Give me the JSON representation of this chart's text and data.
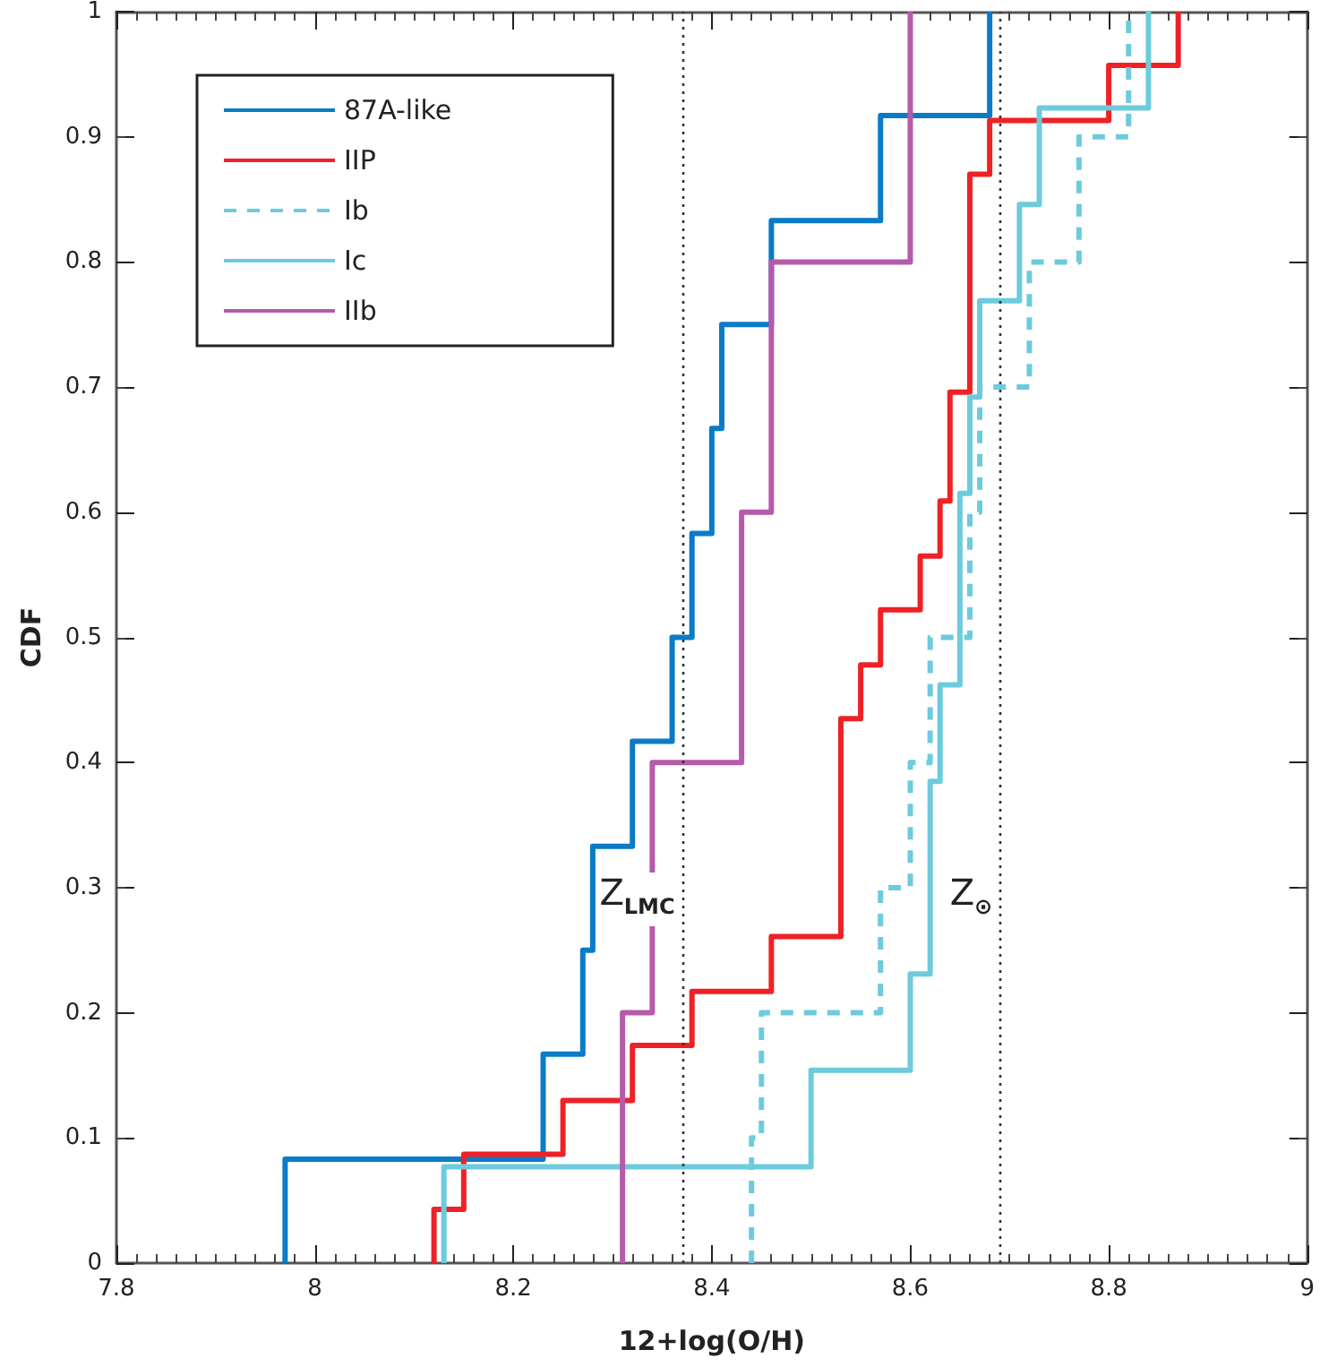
{
  "chart_data": {
    "type": "step",
    "xlabel": "12+log(O/H)",
    "ylabel": "CDF",
    "xlim": [
      7.8,
      9
    ],
    "xticks": [
      7.8,
      8,
      8.2,
      8.4,
      8.6,
      8.8,
      9
    ],
    "ylim": [
      0,
      1
    ],
    "yticks": [
      0,
      0.1,
      0.2,
      0.3,
      0.4,
      0.5,
      0.6,
      0.7,
      0.8,
      0.9,
      1
    ],
    "grid": false,
    "legend": "top left",
    "marker": "none",
    "series": [
      {
        "name": "87A-like",
        "color": "#0a7bc6",
        "line_style": "solid",
        "x": [
          7.97,
          7.97,
          8.23,
          8.27,
          8.28,
          8.32,
          8.36,
          8.38,
          8.4,
          8.41,
          8.46,
          8.57,
          8.68
        ],
        "values": [
          0,
          0.083,
          0.167,
          0.25,
          0.333,
          0.417,
          0.5,
          0.583,
          0.667,
          0.75,
          0.833,
          0.917,
          1
        ]
      },
      {
        "name": "IIP",
        "color": "#ee2226",
        "line_style": "solid",
        "x": [
          8.12,
          8.12,
          8.15,
          8.25,
          8.32,
          8.38,
          8.46,
          8.53,
          8.55,
          8.57,
          8.61,
          8.63,
          8.64,
          8.66,
          8.68,
          8.8,
          8.87
        ],
        "values": [
          0,
          0.043,
          0.087,
          0.13,
          0.174,
          0.217,
          0.261,
          0.435,
          0.478,
          0.522,
          0.565,
          0.609,
          0.696,
          0.87,
          0.913,
          0.957,
          1
        ]
      },
      {
        "name": "Ib",
        "color": "#6ccbdc",
        "line_style": "dashed",
        "x": [
          8.44,
          8.44,
          8.45,
          8.57,
          8.6,
          8.62,
          8.66,
          8.67,
          8.72,
          8.77,
          8.82
        ],
        "values": [
          0,
          0.1,
          0.2,
          0.3,
          0.4,
          0.5,
          0.6,
          0.7,
          0.8,
          0.9,
          1
        ]
      },
      {
        "name": "Ic",
        "color": "#6ccbdc",
        "line_style": "solid",
        "x": [
          8.13,
          8.13,
          8.5,
          8.6,
          8.62,
          8.63,
          8.65,
          8.66,
          8.67,
          8.71,
          8.73,
          8.84
        ],
        "values": [
          0,
          0.077,
          0.154,
          0.231,
          0.385,
          0.462,
          0.615,
          0.692,
          0.769,
          0.846,
          0.923,
          1
        ]
      },
      {
        "name": "IIb",
        "color": "#b65aab",
        "line_style": "solid",
        "x": [
          8.31,
          8.31,
          8.34,
          8.43,
          8.46,
          8.6
        ],
        "values": [
          0,
          0.2,
          0.4,
          0.6,
          0.8,
          1
        ]
      }
    ],
    "ref_lines": [
      {
        "axis": "x",
        "value": 8.37,
        "label": "Z$_{LMC}$",
        "color": "#333333",
        "line_style": "dotted"
      },
      {
        "axis": "x",
        "value": 8.69,
        "label": "Z$_{⊙}$",
        "color": "#333333",
        "line_style": "dotted"
      }
    ]
  }
}
